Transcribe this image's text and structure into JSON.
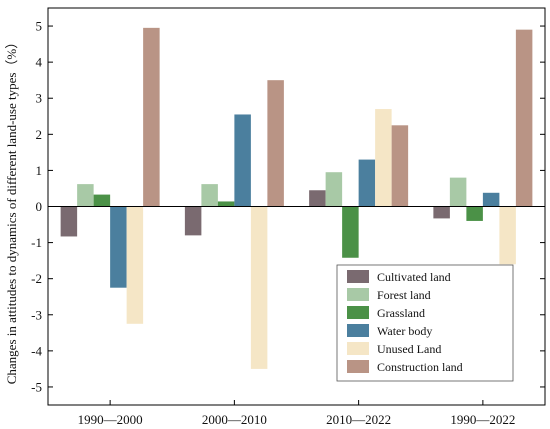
{
  "chart_data": {
    "type": "bar",
    "categories": [
      "1990—2000",
      "2000—2010",
      "2010—2022",
      "1990—2022"
    ],
    "ylabel": "Changes in attitudes to dynamics of different land-use types（%）",
    "xlabel": "",
    "ylim": [
      -5.5,
      5.5
    ],
    "yticks": [
      -5,
      -4,
      -3,
      -2,
      -1,
      0,
      1,
      2,
      3,
      4,
      5
    ],
    "grid": false,
    "legend_position": "bottom-right",
    "series": [
      {
        "name": "Cultivated land",
        "color": "#7a6a70",
        "values": [
          -0.83,
          -0.8,
          0.45,
          -0.33
        ]
      },
      {
        "name": "Forest land",
        "color": "#a8c9a6",
        "values": [
          0.62,
          0.62,
          0.95,
          0.8
        ]
      },
      {
        "name": "Grassland",
        "color": "#4b9147",
        "values": [
          0.33,
          0.14,
          -1.42,
          -0.4
        ]
      },
      {
        "name": "Water body",
        "color": "#4b7f9e",
        "values": [
          -2.25,
          2.55,
          1.3,
          0.38
        ]
      },
      {
        "name": "Unused Land",
        "color": "#f5e6c6",
        "values": [
          -3.25,
          -4.5,
          2.7,
          -1.6
        ]
      },
      {
        "name": "Construction land",
        "color": "#b99485",
        "values": [
          4.95,
          3.5,
          2.25,
          4.9
        ]
      }
    ]
  }
}
